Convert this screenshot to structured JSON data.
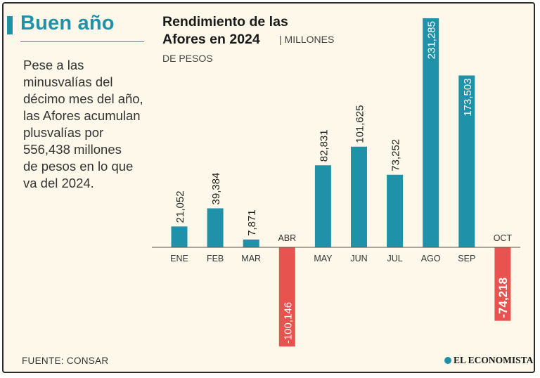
{
  "header": {
    "headline": "Buen año",
    "body": "Pese a las\nminusvalías del\ndécimo mes del año,\nlas Afores acumulan\nplusvalías por\n556,438 millones\nde pesos en lo que\nva del 2024."
  },
  "chart_data": {
    "type": "bar",
    "title": "Rendimiento de las\nAfores en 2024",
    "subtitle": "| MILLONES",
    "subtitle2": "DE PESOS",
    "categories": [
      "ENE",
      "FEB",
      "MAR",
      "ABR",
      "MAY",
      "JUN",
      "JUL",
      "AGO",
      "SEP",
      "OCT"
    ],
    "values": [
      21052,
      39384,
      7871,
      -100146,
      82831,
      101625,
      73252,
      231285,
      173503,
      -74218
    ],
    "labels": [
      "21,052",
      "39,384",
      "7,871",
      "-100,146",
      "82,831",
      "101,625",
      "73,252",
      "231,285",
      "173,503",
      "-74,218"
    ],
    "colors": {
      "positive": "#1f91a8",
      "negative": "#e8524f"
    },
    "grid": false,
    "legend": "none"
  },
  "footer": {
    "source": "FUENTE: CONSAR",
    "brand": "EL ECONOMISTA",
    "brand_icon": "el-economista-logo-icon"
  }
}
